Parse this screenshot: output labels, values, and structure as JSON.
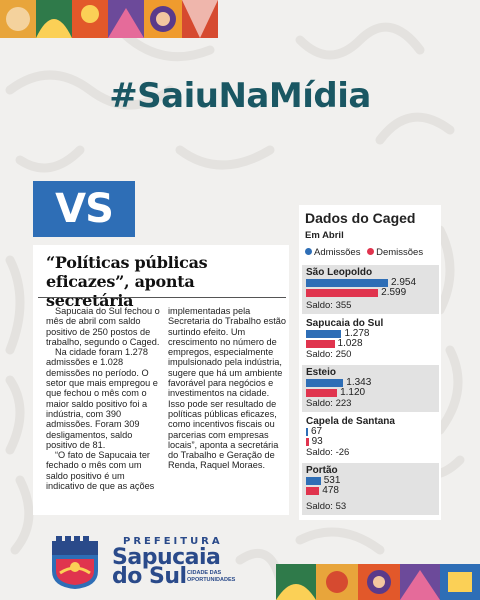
{
  "hashtag": "#SaiuNaMídia",
  "vs_logo": "VS",
  "article": {
    "headline": "“Políticas públicas eficazes”, aponta secretária",
    "col1": [
      "Sapucaia do Sul fechou o mês de abril com saldo positivo de 250 postos de trabalho, segundo o Caged.",
      "Na cidade foram 1.278 admissões e 1.028 demissões no período. O setor que mais empregou e que fechou o mês com o maior saldo positivo foi a indústria, com 390 admissões. Foram 309 desligamentos, saldo positivo de 81.",
      "“O fato de Sapucaia ter fechado o mês com um saldo positivo é um indicativo de que as ações"
    ],
    "col2": "implementadas pela Secretaria do Trabalho estão surtindo efeito. Um crescimento no número de empregos, especialmente impulsionado pela indústria, sugere que há um ambiente favorável para negócios e investimentos na cidade. Isso pode ser resultado de políticas públicas eficazes, como incentivos fiscais ou parcerias com empresas locais”, aponta a secretária do Trabalho e Geração de Renda, Raquel Moraes."
  },
  "caged": {
    "title": "Dados do Caged",
    "subtitle": "Em Abril",
    "legend_adm": "Admissões",
    "legend_dem": "Demissões",
    "color_adm": "#2e6eb6",
    "color_dem": "#e0344e",
    "cities": [
      {
        "name": "São Leopoldo",
        "adm": "2.954",
        "dem": "2.599",
        "saldo": "Saldo: 355"
      },
      {
        "name": "Sapucaia do Sul",
        "adm": "1.278",
        "dem": "1.028",
        "saldo": "Saldo: 250"
      },
      {
        "name": "Esteio",
        "adm": "1.343",
        "dem": "1.120",
        "saldo": "Saldo: 223"
      },
      {
        "name": "Capela de Santana",
        "adm": "67",
        "dem": "93",
        "saldo": "Saldo: -26"
      },
      {
        "name": "Portão",
        "adm": "531",
        "dem": "478",
        "saldo": "Saldo: 53"
      }
    ]
  },
  "chart_data": {
    "type": "bar",
    "title": "Dados do Caged",
    "subtitle": "Em Abril",
    "categories": [
      "São Leopoldo",
      "Sapucaia do Sul",
      "Esteio",
      "Capela de Santana",
      "Portão"
    ],
    "series": [
      {
        "name": "Admissões",
        "values": [
          2954,
          1278,
          1343,
          67,
          531
        ]
      },
      {
        "name": "Demissões",
        "values": [
          2599,
          1028,
          1120,
          93,
          478
        ]
      }
    ],
    "saldo": [
      355,
      250,
      223,
      -26,
      53
    ],
    "orientation": "horizontal",
    "legend": "top-left"
  },
  "logo": {
    "prefeitura": "PREFEITURA",
    "sapucaia": "Sapucaia",
    "do_sul": "do Sul",
    "tagline": "CIDADE DAS OPORTUNIDADES"
  }
}
